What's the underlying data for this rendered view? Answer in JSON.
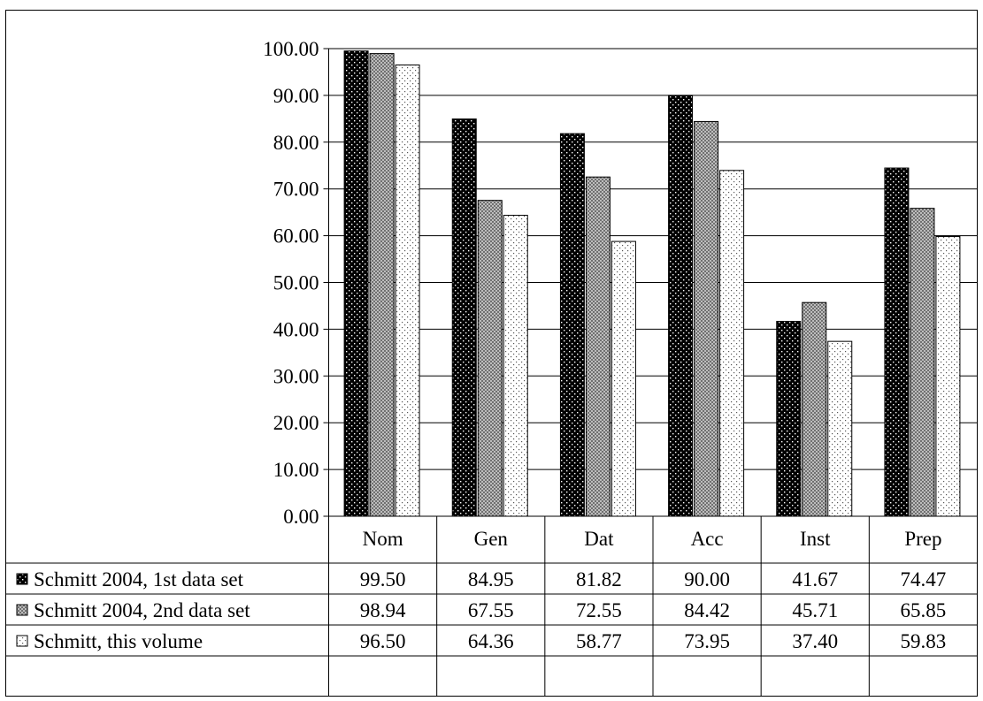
{
  "chart_data": {
    "type": "bar",
    "title": "",
    "xlabel": "",
    "ylabel": "",
    "ylim": [
      0,
      100
    ],
    "y_ticks": [
      "0.00",
      "10.00",
      "20.00",
      "30.00",
      "40.00",
      "50.00",
      "60.00",
      "70.00",
      "80.00",
      "90.00",
      "100.00"
    ],
    "grid": true,
    "legend": "data-table-left",
    "categories": [
      "Nom",
      "Gen",
      "Dat",
      "Acc",
      "Inst",
      "Prep"
    ],
    "series": [
      {
        "name": "Schmitt 2004, 1st data set",
        "pattern": "dark-dotted",
        "color": "#000000",
        "values": [
          99.5,
          84.95,
          81.82,
          90.0,
          41.67,
          74.47
        ],
        "value_labels": [
          "99.50",
          "84.95",
          "81.82",
          "90.00",
          "41.67",
          "74.47"
        ]
      },
      {
        "name": "Schmitt 2004, 2nd data set",
        "pattern": "grey-crosshatch",
        "color": "#8c8c8c",
        "values": [
          98.94,
          67.55,
          72.55,
          84.42,
          45.71,
          65.85
        ],
        "value_labels": [
          "98.94",
          "67.55",
          "72.55",
          "84.42",
          "45.71",
          "65.85"
        ]
      },
      {
        "name": "Schmitt, this volume",
        "pattern": "light-dotted",
        "color": "#ffffff",
        "values": [
          96.5,
          64.36,
          58.77,
          73.95,
          37.4,
          59.83
        ],
        "value_labels": [
          "96.50",
          "64.36",
          "58.77",
          "73.95",
          "37.40",
          "59.83"
        ]
      }
    ]
  }
}
